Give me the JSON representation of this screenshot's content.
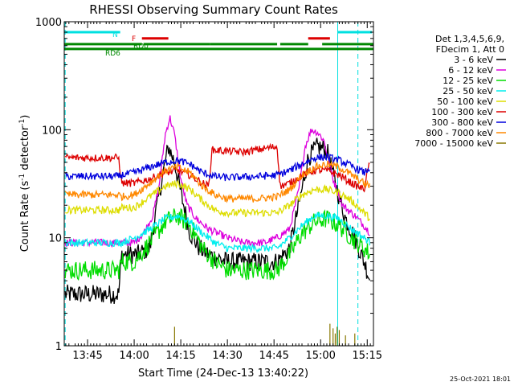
{
  "chart_data": {
    "type": "line",
    "title": "RHESSI Observing Summary Count Rates",
    "xlabel": "Start Time (24-Dec-13 13:40:22)",
    "ylabel_main": "Count Rate (s",
    "ylabel_sup1": "-1",
    "ylabel_mid": " detector",
    "ylabel_sup2": "-1",
    "ylabel_end": ")",
    "yscale": "log",
    "xlim_minutes": [
      -2.5,
      97
    ],
    "ylim": [
      1,
      1000
    ],
    "x_ticks": [
      {
        "m": 5,
        "label": "13:45"
      },
      {
        "m": 20,
        "label": "14:00"
      },
      {
        "m": 35,
        "label": "14:15"
      },
      {
        "m": 50,
        "label": "14:30"
      },
      {
        "m": 65,
        "label": "14:45"
      },
      {
        "m": 80,
        "label": "15:00"
      },
      {
        "m": 95,
        "label": "15:15"
      }
    ],
    "y_ticks": [
      {
        "v": 1,
        "label": "1"
      },
      {
        "v": 10,
        "label": "10"
      },
      {
        "v": 100,
        "label": "100"
      },
      {
        "v": 1000,
        "label": "1000"
      }
    ],
    "legend": {
      "header": [
        "Det 1,3,4,5,6,9,",
        "FDecim 1, Att 0"
      ],
      "entries": [
        {
          "label": "3 - 6 keV",
          "color": "#000000"
        },
        {
          "label": "6 - 12 keV",
          "color": "#dd00dd"
        },
        {
          "label": "12 - 25 keV",
          "color": "#00dd00"
        },
        {
          "label": "25 - 50 keV",
          "color": "#00eeee"
        },
        {
          "label": "50 - 100 keV",
          "color": "#dddd00"
        },
        {
          "label": "100 - 300 keV",
          "color": "#dd0000"
        },
        {
          "label": "300 - 800 keV",
          "color": "#0000dd"
        },
        {
          "label": "800 - 7000 keV",
          "color": "#ff8800"
        },
        {
          "label": "7000 - 15000 keV",
          "color": "#887700"
        }
      ]
    },
    "flags": [
      {
        "label": "N",
        "color": "#00e0e0",
        "y": 800,
        "segments": [
          [
            -2.5,
            15.5
          ],
          [
            85.5,
            96.5
          ]
        ]
      },
      {
        "label": "F",
        "color": "#dd0000",
        "y": 700,
        "segments": [
          [
            22.5,
            31
          ],
          [
            76,
            83
          ]
        ]
      },
      {
        "label": "RD0",
        "color": "#008800",
        "y": 620,
        "segments": [
          [
            -2.5,
            22.5
          ],
          [
            23,
            44.5
          ],
          [
            44.5,
            66
          ],
          [
            67,
            76
          ],
          [
            80.5,
            97
          ]
        ]
      },
      {
        "label": "RD6",
        "color": "#008800",
        "y": 560,
        "segments": [
          [
            -2.5,
            97
          ]
        ]
      }
    ],
    "saa_lines_minutes": [
      -2.2,
      92,
      85.5
    ],
    "series": [
      {
        "name": "3 - 6 keV",
        "color": "#000000",
        "points": [
          [
            -2.2,
            3
          ],
          [
            15,
            3
          ],
          [
            16,
            7
          ],
          [
            19,
            7
          ],
          [
            21,
            7
          ],
          [
            25,
            8
          ],
          [
            28,
            25
          ],
          [
            31,
            70
          ],
          [
            33,
            50
          ],
          [
            35,
            26
          ],
          [
            38,
            11
          ],
          [
            41,
            8
          ],
          [
            44,
            7
          ],
          [
            50,
            6
          ],
          [
            60,
            6
          ],
          [
            66,
            6
          ],
          [
            70,
            8
          ],
          [
            73,
            20
          ],
          [
            76,
            55
          ],
          [
            79,
            70
          ],
          [
            82,
            65
          ],
          [
            85,
            30
          ],
          [
            88,
            15
          ],
          [
            91,
            10
          ],
          [
            94,
            6
          ],
          [
            96,
            4
          ]
        ]
      },
      {
        "name": "6 - 12 keV",
        "color": "#dd00dd",
        "points": [
          [
            -2.2,
            9
          ],
          [
            15,
            9
          ],
          [
            16,
            9
          ],
          [
            20,
            9
          ],
          [
            23,
            11
          ],
          [
            26,
            16
          ],
          [
            28,
            30
          ],
          [
            30,
            90
          ],
          [
            31.5,
            130
          ],
          [
            33,
            90
          ],
          [
            35,
            35
          ],
          [
            37,
            20
          ],
          [
            40,
            15
          ],
          [
            44,
            12
          ],
          [
            50,
            10
          ],
          [
            55,
            9
          ],
          [
            62,
            9
          ],
          [
            66,
            10
          ],
          [
            70,
            12
          ],
          [
            73,
            28
          ],
          [
            75,
            70
          ],
          [
            77,
            100
          ],
          [
            79,
            95
          ],
          [
            81,
            80
          ],
          [
            84,
            35
          ],
          [
            87,
            20
          ],
          [
            91,
            16
          ],
          [
            94,
            13
          ],
          [
            96,
            11
          ]
        ]
      },
      {
        "name": "12 - 25 keV",
        "color": "#00dd00",
        "points": [
          [
            -2.2,
            5
          ],
          [
            15,
            5
          ],
          [
            16,
            6
          ],
          [
            20,
            6
          ],
          [
            25,
            9
          ],
          [
            30,
            14
          ],
          [
            34,
            16
          ],
          [
            38,
            13
          ],
          [
            42,
            8
          ],
          [
            46,
            6
          ],
          [
            50,
            5
          ],
          [
            60,
            5
          ],
          [
            66,
            5
          ],
          [
            70,
            7
          ],
          [
            74,
            11
          ],
          [
            78,
            14
          ],
          [
            82,
            15
          ],
          [
            86,
            13
          ],
          [
            90,
            10
          ],
          [
            94,
            8
          ],
          [
            96,
            7
          ]
        ]
      },
      {
        "name": "25 - 50 keV",
        "color": "#00eeee",
        "points": [
          [
            -2.2,
            9
          ],
          [
            15,
            9
          ],
          [
            16,
            9
          ],
          [
            20,
            10
          ],
          [
            25,
            12
          ],
          [
            30,
            15
          ],
          [
            34,
            16
          ],
          [
            38,
            14
          ],
          [
            42,
            11
          ],
          [
            46,
            9
          ],
          [
            50,
            8
          ],
          [
            60,
            8
          ],
          [
            66,
            8
          ],
          [
            70,
            10
          ],
          [
            74,
            13
          ],
          [
            78,
            16
          ],
          [
            82,
            16
          ],
          [
            86,
            15
          ],
          [
            90,
            12
          ],
          [
            94,
            10
          ],
          [
            96,
            9
          ]
        ]
      },
      {
        "name": "50 - 100 keV",
        "color": "#dddd00",
        "points": [
          [
            -2.2,
            18
          ],
          [
            15,
            18
          ],
          [
            16,
            19
          ],
          [
            20,
            19
          ],
          [
            25,
            24
          ],
          [
            30,
            30
          ],
          [
            34,
            32
          ],
          [
            38,
            28
          ],
          [
            42,
            22
          ],
          [
            46,
            18
          ],
          [
            50,
            17
          ],
          [
            60,
            17
          ],
          [
            66,
            17
          ],
          [
            70,
            20
          ],
          [
            74,
            25
          ],
          [
            78,
            28
          ],
          [
            82,
            28
          ],
          [
            86,
            26
          ],
          [
            90,
            22
          ],
          [
            94,
            17
          ],
          [
            96,
            15
          ]
        ]
      },
      {
        "name": "100 - 300 keV",
        "color": "#dd0000",
        "points": [
          [
            -2.2,
            55
          ],
          [
            15,
            55
          ],
          [
            16,
            32
          ],
          [
            20,
            32
          ],
          [
            25,
            35
          ],
          [
            30,
            40
          ],
          [
            34,
            42
          ],
          [
            38,
            38
          ],
          [
            42,
            32
          ],
          [
            44,
            30
          ],
          [
            45,
            65
          ],
          [
            55,
            62
          ],
          [
            66,
            70
          ],
          [
            67,
            30
          ],
          [
            70,
            32
          ],
          [
            74,
            38
          ],
          [
            78,
            42
          ],
          [
            82,
            42
          ],
          [
            86,
            38
          ],
          [
            90,
            32
          ],
          [
            94,
            28
          ],
          [
            96,
            55
          ]
        ]
      },
      {
        "name": "300 - 800 keV",
        "color": "#0000dd",
        "points": [
          [
            -2.2,
            37
          ],
          [
            15,
            37
          ],
          [
            16,
            38
          ],
          [
            20,
            40
          ],
          [
            25,
            45
          ],
          [
            30,
            50
          ],
          [
            34,
            52
          ],
          [
            38,
            48
          ],
          [
            42,
            40
          ],
          [
            46,
            37
          ],
          [
            50,
            36
          ],
          [
            60,
            37
          ],
          [
            66,
            38
          ],
          [
            70,
            42
          ],
          [
            74,
            48
          ],
          [
            78,
            55
          ],
          [
            82,
            56
          ],
          [
            86,
            52
          ],
          [
            90,
            46
          ],
          [
            94,
            40
          ],
          [
            96,
            45
          ]
        ]
      },
      {
        "name": "800 - 7000 keV",
        "color": "#ff8800",
        "points": [
          [
            -2.2,
            25
          ],
          [
            15,
            25
          ],
          [
            16,
            24
          ],
          [
            20,
            25
          ],
          [
            25,
            32
          ],
          [
            30,
            42
          ],
          [
            34,
            45
          ],
          [
            38,
            40
          ],
          [
            42,
            30
          ],
          [
            46,
            25
          ],
          [
            50,
            23
          ],
          [
            60,
            23
          ],
          [
            66,
            24
          ],
          [
            70,
            28
          ],
          [
            74,
            38
          ],
          [
            78,
            45
          ],
          [
            82,
            48
          ],
          [
            86,
            45
          ],
          [
            90,
            38
          ],
          [
            94,
            32
          ],
          [
            96,
            30
          ]
        ]
      },
      {
        "name": "7000 - 15000 keV",
        "color": "#887700",
        "spikes": [
          [
            33,
            1.5
          ],
          [
            83,
            1.6
          ],
          [
            84,
            1.45
          ],
          [
            84.7,
            1.3
          ],
          [
            85.3,
            1.5
          ],
          [
            86,
            1.4
          ],
          [
            88,
            1.25
          ],
          [
            91,
            1.3
          ]
        ]
      }
    ]
  },
  "footer": {
    "timestamp": "25-Oct-2021 18:01"
  }
}
